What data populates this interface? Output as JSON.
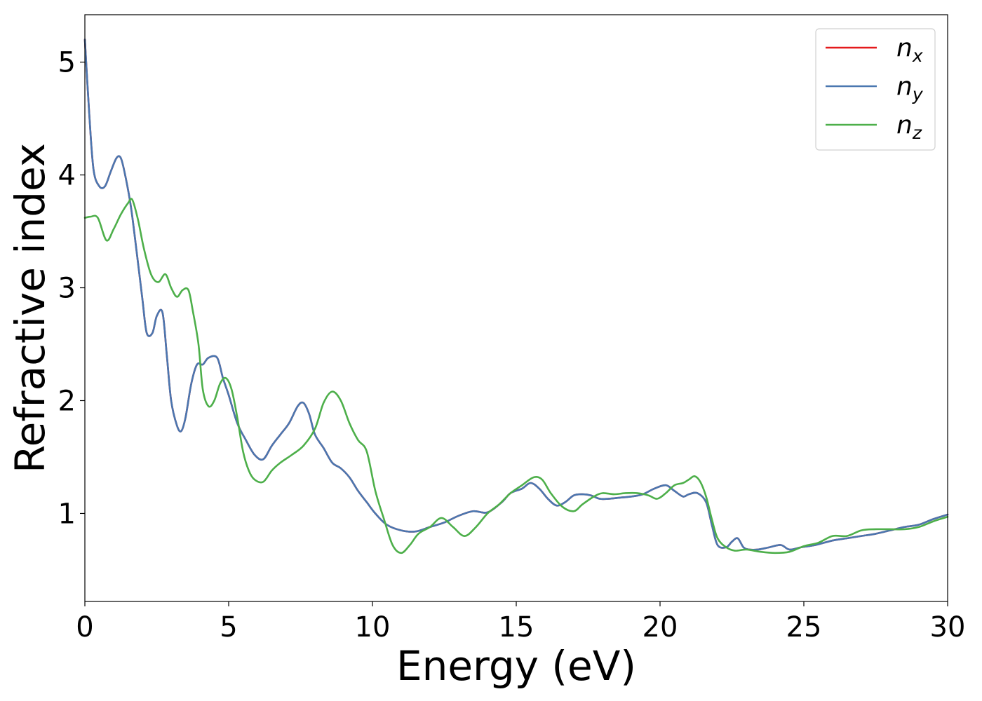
{
  "chart_data": {
    "type": "line",
    "title": "",
    "xlabel": "Energy (eV)",
    "ylabel": "Refractive index",
    "xlim": [
      0,
      30
    ],
    "ylim": [
      0.22,
      5.42
    ],
    "xticks": [
      0,
      5,
      10,
      15,
      20,
      25,
      30
    ],
    "yticks": [
      1,
      2,
      3,
      4,
      5
    ],
    "grid": false,
    "legend": "top-right",
    "series": [
      {
        "name": "n",
        "subscript": "x",
        "color": "#e41a1c",
        "x": [
          0,
          0.15,
          0.3,
          0.5,
          0.7,
          0.9,
          1.1,
          1.25,
          1.4,
          1.6,
          1.8,
          2.0,
          2.15,
          2.35,
          2.5,
          2.7,
          2.85,
          3.0,
          3.2,
          3.35,
          3.5,
          3.7,
          3.9,
          4.1,
          4.3,
          4.6,
          4.8,
          5.0,
          5.3,
          5.6,
          5.9,
          6.2,
          6.5,
          6.8,
          7.1,
          7.4,
          7.6,
          7.8,
          8.0,
          8.3,
          8.6,
          8.9,
          9.2,
          9.5,
          9.8,
          10.1,
          10.5,
          11.0,
          11.5,
          12.0,
          12.5,
          13.0,
          13.5,
          14.0,
          14.5,
          14.8,
          15.2,
          15.5,
          15.8,
          16.1,
          16.4,
          16.7,
          17.0,
          17.3,
          17.6,
          17.9,
          18.2,
          18.6,
          19.0,
          19.4,
          19.8,
          20.2,
          20.5,
          20.8,
          21.0,
          21.3,
          21.6,
          21.8,
          22.0,
          22.3,
          22.5,
          22.7,
          22.9,
          23.1,
          23.4,
          23.8,
          24.2,
          24.5,
          24.9,
          25.4,
          26.0,
          26.5,
          27.0,
          27.5,
          28.0,
          28.5,
          29.0,
          29.5,
          30.0
        ],
        "y": [
          5.2,
          4.55,
          4.05,
          3.9,
          3.9,
          4.03,
          4.15,
          4.15,
          4.0,
          3.72,
          3.32,
          2.9,
          2.6,
          2.6,
          2.75,
          2.78,
          2.4,
          2.0,
          1.78,
          1.73,
          1.85,
          2.15,
          2.32,
          2.32,
          2.38,
          2.38,
          2.2,
          2.05,
          1.8,
          1.65,
          1.52,
          1.48,
          1.6,
          1.7,
          1.8,
          1.95,
          1.98,
          1.88,
          1.7,
          1.58,
          1.45,
          1.4,
          1.32,
          1.2,
          1.1,
          1.0,
          0.9,
          0.85,
          0.84,
          0.88,
          0.92,
          0.98,
          1.02,
          1.01,
          1.1,
          1.18,
          1.22,
          1.27,
          1.22,
          1.13,
          1.07,
          1.1,
          1.16,
          1.17,
          1.16,
          1.13,
          1.13,
          1.14,
          1.15,
          1.17,
          1.22,
          1.25,
          1.2,
          1.15,
          1.17,
          1.18,
          1.1,
          0.9,
          0.72,
          0.7,
          0.75,
          0.78,
          0.7,
          0.68,
          0.68,
          0.7,
          0.72,
          0.68,
          0.7,
          0.72,
          0.76,
          0.78,
          0.8,
          0.82,
          0.85,
          0.88,
          0.9,
          0.95,
          0.99
        ]
      },
      {
        "name": "n",
        "subscript": "y",
        "color": "#4a77b0",
        "x": [
          0,
          0.15,
          0.3,
          0.5,
          0.7,
          0.9,
          1.1,
          1.25,
          1.4,
          1.6,
          1.8,
          2.0,
          2.15,
          2.35,
          2.5,
          2.7,
          2.85,
          3.0,
          3.2,
          3.35,
          3.5,
          3.7,
          3.9,
          4.1,
          4.3,
          4.6,
          4.8,
          5.0,
          5.3,
          5.6,
          5.9,
          6.2,
          6.5,
          6.8,
          7.1,
          7.4,
          7.6,
          7.8,
          8.0,
          8.3,
          8.6,
          8.9,
          9.2,
          9.5,
          9.8,
          10.1,
          10.5,
          11.0,
          11.5,
          12.0,
          12.5,
          13.0,
          13.5,
          14.0,
          14.5,
          14.8,
          15.2,
          15.5,
          15.8,
          16.1,
          16.4,
          16.7,
          17.0,
          17.3,
          17.6,
          17.9,
          18.2,
          18.6,
          19.0,
          19.4,
          19.8,
          20.2,
          20.5,
          20.8,
          21.0,
          21.3,
          21.6,
          21.8,
          22.0,
          22.3,
          22.5,
          22.7,
          22.9,
          23.1,
          23.4,
          23.8,
          24.2,
          24.5,
          24.9,
          25.4,
          26.0,
          26.5,
          27.0,
          27.5,
          28.0,
          28.5,
          29.0,
          29.5,
          30.0
        ],
        "y": [
          5.2,
          4.55,
          4.05,
          3.9,
          3.9,
          4.03,
          4.15,
          4.15,
          4.0,
          3.72,
          3.32,
          2.9,
          2.6,
          2.6,
          2.75,
          2.78,
          2.4,
          2.0,
          1.78,
          1.73,
          1.85,
          2.15,
          2.32,
          2.32,
          2.38,
          2.38,
          2.2,
          2.05,
          1.8,
          1.65,
          1.52,
          1.48,
          1.6,
          1.7,
          1.8,
          1.95,
          1.98,
          1.88,
          1.7,
          1.58,
          1.45,
          1.4,
          1.32,
          1.2,
          1.1,
          1.0,
          0.9,
          0.85,
          0.84,
          0.88,
          0.92,
          0.98,
          1.02,
          1.01,
          1.1,
          1.18,
          1.22,
          1.27,
          1.22,
          1.13,
          1.07,
          1.1,
          1.16,
          1.17,
          1.16,
          1.13,
          1.13,
          1.14,
          1.15,
          1.17,
          1.22,
          1.25,
          1.2,
          1.15,
          1.17,
          1.18,
          1.1,
          0.9,
          0.72,
          0.7,
          0.75,
          0.78,
          0.7,
          0.68,
          0.68,
          0.7,
          0.72,
          0.68,
          0.7,
          0.72,
          0.76,
          0.78,
          0.8,
          0.82,
          0.85,
          0.88,
          0.9,
          0.95,
          0.99
        ]
      },
      {
        "name": "n",
        "subscript": "z",
        "color": "#4daf4a",
        "x": [
          0,
          0.2,
          0.45,
          0.75,
          1.0,
          1.25,
          1.5,
          1.65,
          1.85,
          2.05,
          2.3,
          2.55,
          2.8,
          3.0,
          3.2,
          3.4,
          3.6,
          3.75,
          3.95,
          4.1,
          4.3,
          4.5,
          4.7,
          4.9,
          5.1,
          5.3,
          5.5,
          5.7,
          5.9,
          6.2,
          6.5,
          6.8,
          7.2,
          7.6,
          8.0,
          8.3,
          8.6,
          8.9,
          9.2,
          9.5,
          9.8,
          10.1,
          10.4,
          10.7,
          11.0,
          11.3,
          11.6,
          12.0,
          12.4,
          12.8,
          13.2,
          13.6,
          14.0,
          14.4,
          14.8,
          15.2,
          15.6,
          15.9,
          16.2,
          16.6,
          17.0,
          17.3,
          17.7,
          18.0,
          18.4,
          18.8,
          19.2,
          19.6,
          19.9,
          20.2,
          20.5,
          20.8,
          21.0,
          21.2,
          21.4,
          21.6,
          21.8,
          22.0,
          22.3,
          22.6,
          23.0,
          23.5,
          24.0,
          24.5,
          25.0,
          25.5,
          26.0,
          26.5,
          27.0,
          27.5,
          28.0,
          28.5,
          29.0,
          29.5,
          30.0
        ],
        "y": [
          3.62,
          3.63,
          3.62,
          3.42,
          3.52,
          3.65,
          3.75,
          3.78,
          3.6,
          3.35,
          3.12,
          3.05,
          3.12,
          3.0,
          2.92,
          2.98,
          2.98,
          2.8,
          2.5,
          2.1,
          1.95,
          2.0,
          2.15,
          2.2,
          2.1,
          1.85,
          1.55,
          1.38,
          1.3,
          1.28,
          1.38,
          1.45,
          1.52,
          1.6,
          1.75,
          1.98,
          2.08,
          2.0,
          1.8,
          1.65,
          1.55,
          1.2,
          0.95,
          0.72,
          0.65,
          0.72,
          0.82,
          0.88,
          0.96,
          0.88,
          0.8,
          0.88,
          1.0,
          1.08,
          1.18,
          1.25,
          1.32,
          1.3,
          1.18,
          1.06,
          1.02,
          1.08,
          1.15,
          1.18,
          1.17,
          1.18,
          1.18,
          1.16,
          1.13,
          1.18,
          1.25,
          1.27,
          1.3,
          1.33,
          1.28,
          1.15,
          0.95,
          0.78,
          0.7,
          0.67,
          0.68,
          0.66,
          0.65,
          0.66,
          0.71,
          0.74,
          0.8,
          0.8,
          0.85,
          0.86,
          0.86,
          0.86,
          0.88,
          0.93,
          0.97
        ]
      }
    ]
  }
}
